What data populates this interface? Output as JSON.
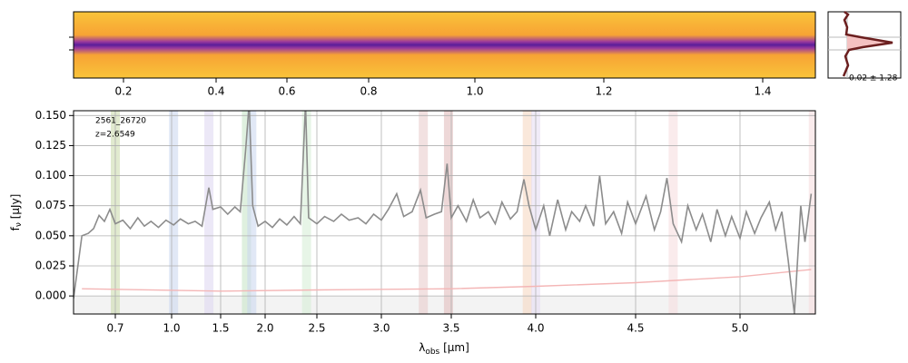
{
  "chart_data": [
    {
      "type": "image",
      "xlim": [
        0.09,
        1.47
      ],
      "xticks": [
        0.2,
        0.4,
        0.6,
        0.8,
        {
          "value": 1.0,
          "label": "1.0"
        },
        1.2,
        1.4
      ],
      "profile_label": "0.02 ± 1.28"
    },
    {
      "type": "line",
      "annotations": [
        "2561_26720",
        "z=2.6549"
      ],
      "ylabel": {
        "symbol": "f",
        "sub": "ν",
        "unit": " [μJy]"
      },
      "xlabel": {
        "symbol": "λ",
        "sub": "obs",
        "unit": " [μm]"
      },
      "xlim": [
        0.6,
        5.36
      ],
      "xticks": [
        0.7,
        {
          "value": 1.0,
          "label": "1.0"
        },
        1.5,
        {
          "value": 2.0,
          "label": "2.0"
        },
        2.5,
        {
          "value": 3.0,
          "label": "3.0"
        },
        3.5,
        {
          "value": 4.0,
          "label": "4.0"
        },
        4.5,
        {
          "value": 5.0,
          "label": "5.0"
        }
      ],
      "ylim": [
        -0.015,
        0.154
      ],
      "yticks": [
        {
          "value": 0,
          "label": "0.000"
        },
        {
          "value": 0.025,
          "label": "0.025"
        },
        {
          "value": 0.05,
          "label": "0.050"
        },
        {
          "value": 0.075,
          "label": "0.075"
        },
        {
          "value": 0.1,
          "label": "0.100"
        },
        {
          "value": 0.125,
          "label": "0.125"
        },
        {
          "value": 0.15,
          "label": "0.150"
        }
      ],
      "grid": true,
      "bands": [
        {
          "x": 0.7,
          "color": "#c9d9a8"
        },
        {
          "x": 1.02,
          "color": "#c9d6ee"
        },
        {
          "x": 1.38,
          "color": "#ddd6f0"
        },
        {
          "x": 1.79,
          "color": "#c5e4c5"
        },
        {
          "x": 1.85,
          "color": "#c9d6ee"
        },
        {
          "x": 2.4,
          "color": "#d3ecd3"
        },
        {
          "x": 3.3,
          "color": "#e8c8c8"
        },
        {
          "x": 3.48,
          "color": "#e0b8b8"
        },
        {
          "x": 3.95,
          "color": "#f6d6bd"
        },
        {
          "x": 4.0,
          "color": "#e3dbf2"
        },
        {
          "x": 4.68,
          "color": "#f6dadd"
        },
        {
          "x": 5.35,
          "color": "#f6dadd"
        }
      ],
      "series": [
        {
          "color": "#8c8c8c",
          "x": [
            0.6,
            0.62,
            0.635,
            0.648,
            0.661,
            0.674,
            0.687,
            0.7,
            0.74,
            0.78,
            0.82,
            0.855,
            0.89,
            0.93,
            0.97,
            1.02,
            1.09,
            1.17,
            1.24,
            1.31,
            1.38,
            1.42,
            1.5,
            1.58,
            1.66,
            1.72,
            1.78,
            1.82,
            1.86,
            1.92,
            2.0,
            2.07,
            2.14,
            2.21,
            2.28,
            2.34,
            2.39,
            2.42,
            2.5,
            2.56,
            2.63,
            2.69,
            2.75,
            2.82,
            2.88,
            2.94,
            3.0,
            3.05,
            3.11,
            3.16,
            3.22,
            3.28,
            3.32,
            3.38,
            3.43,
            3.47,
            3.5,
            3.54,
            3.59,
            3.63,
            3.67,
            3.72,
            3.76,
            3.8,
            3.85,
            3.89,
            3.93,
            3.96,
            4.0,
            4.04,
            4.07,
            4.11,
            4.15,
            4.18,
            4.22,
            4.25,
            4.29,
            4.32,
            4.35,
            4.39,
            4.43,
            4.46,
            4.5,
            4.55,
            4.59,
            4.62,
            4.65,
            4.68,
            4.72,
            4.75,
            4.79,
            4.82,
            4.86,
            4.89,
            4.93,
            4.96,
            5.0,
            5.03,
            5.07,
            5.1,
            5.14,
            5.17,
            5.2,
            5.23,
            5.26,
            5.29,
            5.31,
            5.34
          ],
          "values": [
            -0.002,
            0.05,
            0.052,
            0.056,
            0.067,
            0.062,
            0.072,
            0.06,
            0.063,
            0.056,
            0.065,
            0.058,
            0.062,
            0.057,
            0.063,
            0.059,
            0.064,
            0.06,
            0.062,
            0.058,
            0.09,
            0.072,
            0.074,
            0.068,
            0.074,
            0.07,
            0.12,
            0.16,
            0.075,
            0.058,
            0.062,
            0.057,
            0.064,
            0.059,
            0.066,
            0.06,
            0.16,
            0.065,
            0.06,
            0.066,
            0.062,
            0.068,
            0.063,
            0.065,
            0.06,
            0.068,
            0.063,
            0.072,
            0.085,
            0.066,
            0.07,
            0.088,
            0.065,
            0.068,
            0.07,
            0.11,
            0.065,
            0.075,
            0.062,
            0.08,
            0.065,
            0.07,
            0.06,
            0.078,
            0.064,
            0.07,
            0.097,
            0.075,
            0.055,
            0.075,
            0.05,
            0.08,
            0.055,
            0.07,
            0.062,
            0.075,
            0.058,
            0.1,
            0.06,
            0.07,
            0.052,
            0.078,
            0.06,
            0.083,
            0.055,
            0.07,
            0.098,
            0.06,
            0.045,
            0.075,
            0.055,
            0.068,
            0.045,
            0.072,
            0.05,
            0.066,
            0.048,
            0.07,
            0.052,
            0.065,
            0.078,
            0.055,
            0.07,
            0.03,
            -0.015,
            0.075,
            0.045,
            0.085
          ]
        },
        {
          "color": "#f4b6b6",
          "x": [
            0.62,
            1.5,
            2.5,
            3.5,
            4.0,
            4.5,
            5.0,
            5.34
          ],
          "values": [
            0.006,
            0.004,
            0.005,
            0.006,
            0.008,
            0.011,
            0.016,
            0.022
          ]
        }
      ]
    }
  ]
}
